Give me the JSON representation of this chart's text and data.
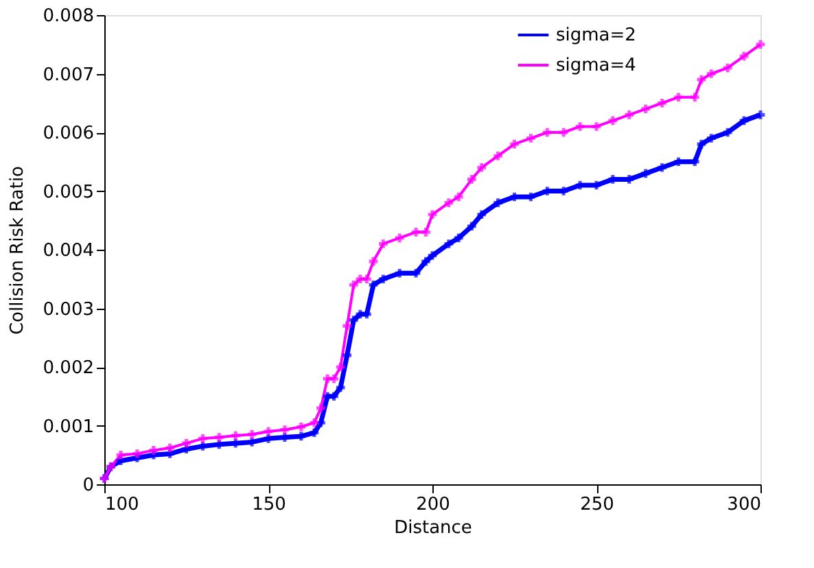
{
  "chart_data": {
    "type": "line",
    "xlabel": "Distance",
    "ylabel": "Collision Risk Ratio",
    "x": [
      100,
      102,
      105,
      110,
      115,
      120,
      125,
      130,
      135,
      140,
      145,
      150,
      155,
      160,
      164,
      166,
      168,
      170,
      172,
      174,
      176,
      178,
      180,
      182,
      185,
      190,
      195,
      198,
      200,
      205,
      208,
      212,
      215,
      220,
      225,
      230,
      235,
      240,
      245,
      250,
      255,
      260,
      265,
      270,
      275,
      280,
      282,
      285,
      290,
      295,
      300
    ],
    "series": [
      {
        "name": "sigma=2",
        "color": "#0000ff",
        "values": [
          0.0001,
          0.0003,
          0.0004,
          0.00045,
          0.0005,
          0.00052,
          0.0006,
          0.00065,
          0.00068,
          0.0007,
          0.00072,
          0.00078,
          0.0008,
          0.00082,
          0.00088,
          0.00105,
          0.0015,
          0.0015,
          0.00165,
          0.0022,
          0.0028,
          0.0029,
          0.0029,
          0.0034,
          0.0035,
          0.0036,
          0.0036,
          0.0038,
          0.0039,
          0.0041,
          0.0042,
          0.0044,
          0.0046,
          0.0048,
          0.0049,
          0.0049,
          0.005,
          0.005,
          0.0051,
          0.0051,
          0.0052,
          0.0052,
          0.0053,
          0.0054,
          0.0055,
          0.0055,
          0.0058,
          0.0059,
          0.006,
          0.0062,
          0.0063
        ]
      },
      {
        "name": "sigma=4",
        "color": "#ff00ff",
        "values": [
          0.0001,
          0.0003,
          0.0005,
          0.00052,
          0.00058,
          0.00062,
          0.0007,
          0.00078,
          0.0008,
          0.00083,
          0.00085,
          0.0009,
          0.00093,
          0.00098,
          0.00105,
          0.0013,
          0.0018,
          0.0018,
          0.002,
          0.0027,
          0.0034,
          0.0035,
          0.0035,
          0.0038,
          0.0041,
          0.0042,
          0.0043,
          0.0043,
          0.0046,
          0.0048,
          0.0049,
          0.0052,
          0.0054,
          0.0056,
          0.0058,
          0.0059,
          0.006,
          0.006,
          0.0061,
          0.0061,
          0.0062,
          0.0063,
          0.0064,
          0.0065,
          0.0066,
          0.0066,
          0.0069,
          0.007,
          0.0071,
          0.0073,
          0.0075
        ]
      }
    ],
    "xlim": [
      100,
      300
    ],
    "xticks": [
      100,
      150,
      200,
      250,
      300
    ],
    "ylim": [
      0,
      0.008
    ],
    "yticks": [
      {
        "value": 0,
        "label": "0"
      },
      0.001,
      0.002,
      0.003,
      0.004,
      0.005,
      0.006,
      0.007,
      0.008
    ],
    "grid": false,
    "legend": "top right",
    "marker": "cross",
    "line_style": "solid"
  }
}
